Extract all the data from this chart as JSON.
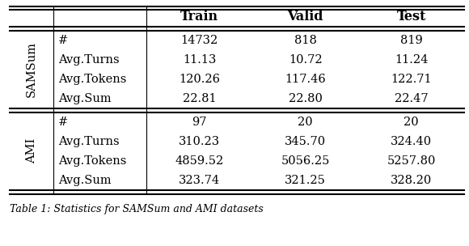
{
  "col_headers": [
    "Train",
    "Valid",
    "Test"
  ],
  "row_groups": [
    {
      "group_label": "SAMSum",
      "rows": [
        [
          "#",
          "14732",
          "818",
          "819"
        ],
        [
          "Avg.Turns",
          "11.13",
          "10.72",
          "11.24"
        ],
        [
          "Avg.Tokens",
          "120.26",
          "117.46",
          "122.71"
        ],
        [
          "Avg.Sum",
          "22.81",
          "22.80",
          "22.47"
        ]
      ]
    },
    {
      "group_label": "AMI",
      "rows": [
        [
          "#",
          "97",
          "20",
          "20"
        ],
        [
          "Avg.Turns",
          "310.23",
          "345.70",
          "324.40"
        ],
        [
          "Avg.Tokens",
          "4859.52",
          "5056.25",
          "5257.80"
        ],
        [
          "Avg.Sum",
          "323.74",
          "321.25",
          "328.20"
        ]
      ]
    }
  ],
  "caption": "Table 1: Statistics for SAMSum and AMI datasets",
  "background_color": "#ffffff",
  "font_size": 10.5,
  "header_font_size": 11.5,
  "caption_font_size": 9.0
}
